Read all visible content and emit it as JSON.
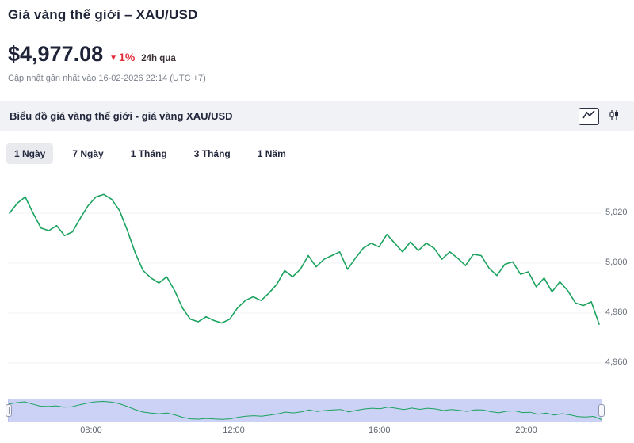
{
  "page": {
    "title": "Giá vàng thế giới – XAU/USD",
    "price": "$4,977.08",
    "change_percent": "1%",
    "change_direction": "down",
    "change_period": "24h qua",
    "updated_text": "Cập nhật gần nhất vào 16-02-2026 22:14 (UTC +7)"
  },
  "icons": {
    "down_arrow": "▼",
    "chart_type_buttons": [
      "line-chart-icon",
      "candlestick-icon"
    ]
  },
  "chart_header": {
    "title": "Biểu đồ giá vàng thế giới - giá vàng XAU/USD"
  },
  "range_tabs": [
    {
      "label": "1 Ngày",
      "active": true
    },
    {
      "label": "7 Ngày",
      "active": false
    },
    {
      "label": "1 Tháng",
      "active": false
    },
    {
      "label": "3 Tháng",
      "active": false
    },
    {
      "label": "1 Năm",
      "active": false
    }
  ],
  "colors": {
    "accent_red": "#e12d39",
    "text_dark": "#23283d",
    "line_green": "#1aa25e",
    "navigator_fill": "#ccd2f5"
  },
  "chart_data": {
    "type": "line",
    "title": "Giá vàng XAU/USD - 1 Ngày",
    "series_name": "XAU/USD",
    "line_color": "#1aa25e",
    "navigator_fill": "#ccd2f5",
    "grid": "horizontal-faint",
    "legend": "none",
    "y_axis_side": "right",
    "y_range": [
      4953,
      5033
    ],
    "navigator_y_range": [
      4972,
      5031
    ],
    "y_ticks": [
      {
        "value": 5020,
        "label": "5,020"
      },
      {
        "value": 5000,
        "label": "5,000"
      },
      {
        "value": 4980,
        "label": "4,980"
      },
      {
        "value": 4960,
        "label": "4,960"
      }
    ],
    "x_ticks": [
      {
        "label": "08:00",
        "pos": 0.14
      },
      {
        "label": "12:00",
        "pos": 0.38
      },
      {
        "label": "16:00",
        "pos": 0.625
      },
      {
        "label": "20:00",
        "pos": 0.872
      }
    ],
    "values": [
      5020,
      5024,
      5026.5,
      5020,
      5014,
      5013,
      5015,
      5011,
      5012.5,
      5018,
      5023,
      5026.5,
      5027.5,
      5025.5,
      5021,
      5013,
      5004,
      4997,
      4994,
      4992,
      4994.5,
      4989,
      4982,
      4977.5,
      4976.5,
      4978.5,
      4977,
      4976,
      4977.5,
      4982,
      4985,
      4986.5,
      4985,
      4988,
      4991.5,
      4997,
      4994.5,
      4997.5,
      5003,
      4998.5,
      5001.5,
      5003,
      5004.5,
      4997.5,
      5002,
      5006,
      5008,
      5006.5,
      5011.5,
      5008,
      5004.5,
      5008.5,
      5005,
      5008,
      5006,
      5001.5,
      5004.5,
      5002,
      4999,
      5003.5,
      5003,
      4998,
      4995,
      4999.5,
      5000.5,
      4995.5,
      4996.5,
      4990.5,
      4994,
      4988.5,
      4992.5,
      4989,
      4984,
      4983,
      4984.5,
      4975.5
    ]
  }
}
